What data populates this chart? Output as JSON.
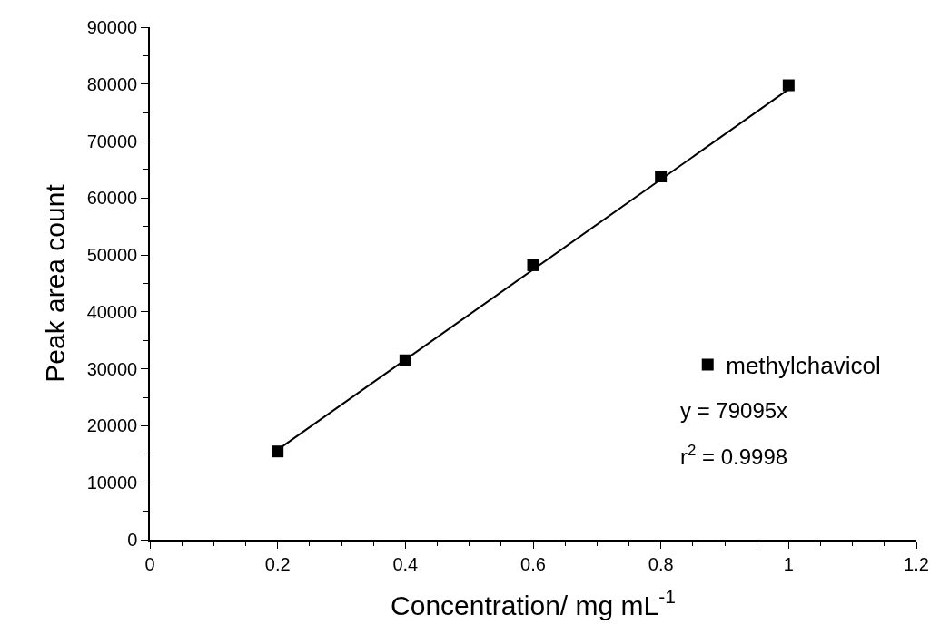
{
  "chart_data": {
    "type": "scatter",
    "xlabel": "Concentration/ mg mL$^{-1}$",
    "ylabel": "Peak area count",
    "x": [
      0.2,
      0.4,
      0.6,
      0.8,
      1
    ],
    "series": [
      {
        "name": "methylchavicol",
        "color": "#000000",
        "values": [
          15500,
          31500,
          48200,
          63800,
          79800
        ]
      },
      {
        "type": "line",
        "marker": "none",
        "color": "#000000",
        "x": [
          0.2,
          1
        ],
        "values": [
          15800,
          79100
        ]
      }
    ],
    "marker": "square",
    "legend": "bottom right",
    "xlim": [
      0,
      1.2
    ],
    "xticks": [
      0,
      0.2,
      0.4,
      0.6,
      0.8,
      1,
      1.2
    ],
    "ylim": [
      0,
      90000
    ],
    "yticks": [
      0,
      10000,
      20000,
      30000,
      40000,
      50000,
      60000,
      70000,
      80000,
      90000
    ],
    "annotations": [
      "y = 79095x",
      "r$^{2}$ = 0.9998"
    ]
  }
}
